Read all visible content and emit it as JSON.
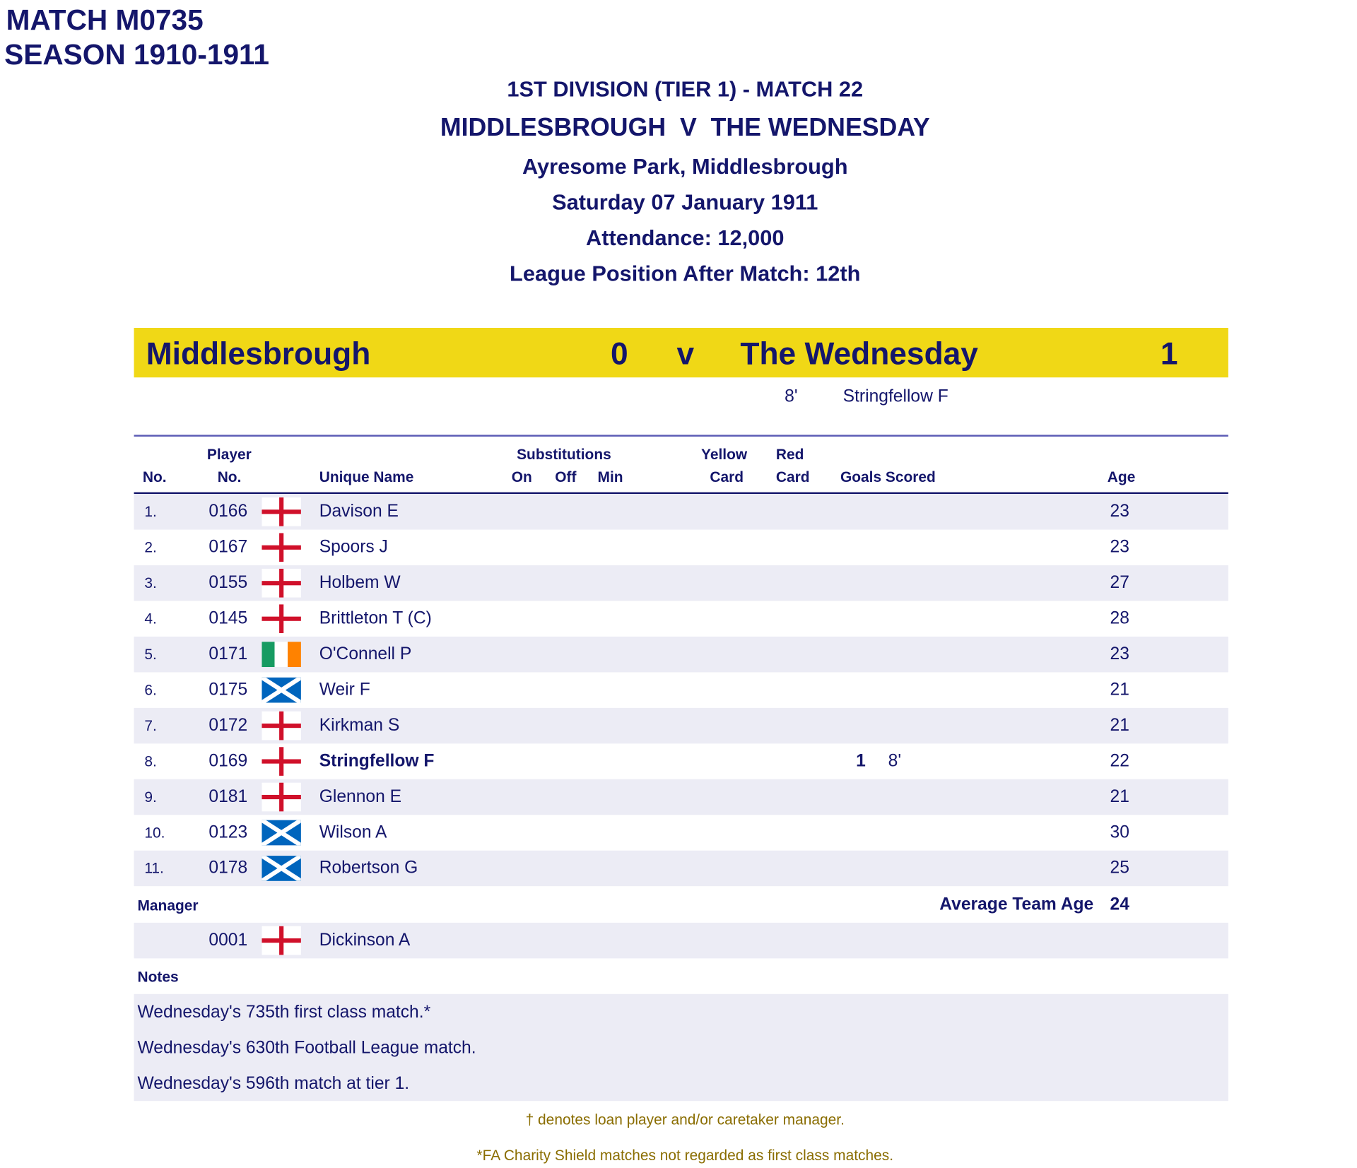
{
  "header": {
    "match_id": "MATCH M0735",
    "season": "SEASON 1910-1911"
  },
  "info": {
    "competition": "1ST DIVISION (TIER 1) - MATCH 22",
    "fixture": "MIDDLESBROUGH  V  THE WEDNESDAY",
    "venue": "Ayresome Park, Middlesbrough",
    "date": "Saturday 07 January 1911",
    "attendance": "Attendance: 12,000",
    "league_position": "League Position After Match: 12th"
  },
  "score": {
    "home": "Middlesbrough",
    "home_goals": "0",
    "vs": "v",
    "away": "The Wednesday",
    "away_goals": "1",
    "band_color": "#f0d816",
    "scorers": [
      {
        "minute": "8'",
        "name": "Stringfellow F"
      }
    ]
  },
  "columns": {
    "no": "No.",
    "player_top": "Player",
    "player_no": "No.",
    "name": "Unique Name",
    "subs": "Substitutions",
    "on": "On",
    "off": "Off",
    "min": "Min",
    "yellow_top": "Yellow",
    "yellow": "Card",
    "red_top": "Red",
    "red": "Card",
    "goals": "Goals Scored",
    "age": "Age"
  },
  "players": [
    {
      "no": "1.",
      "pno": "0166",
      "flag": "england",
      "name": "Davison E",
      "goals": "",
      "goal_min": "",
      "age": "23"
    },
    {
      "no": "2.",
      "pno": "0167",
      "flag": "england",
      "name": "Spoors J",
      "goals": "",
      "goal_min": "",
      "age": "23"
    },
    {
      "no": "3.",
      "pno": "0155",
      "flag": "england",
      "name": "Holbem W",
      "goals": "",
      "goal_min": "",
      "age": "27"
    },
    {
      "no": "4.",
      "pno": "0145",
      "flag": "england",
      "name": "Brittleton T (C)",
      "goals": "",
      "goal_min": "",
      "age": "28"
    },
    {
      "no": "5.",
      "pno": "0171",
      "flag": "ireland",
      "name": "O'Connell P",
      "goals": "",
      "goal_min": "",
      "age": "23"
    },
    {
      "no": "6.",
      "pno": "0175",
      "flag": "scotland",
      "name": "Weir F",
      "goals": "",
      "goal_min": "",
      "age": "21"
    },
    {
      "no": "7.",
      "pno": "0172",
      "flag": "england",
      "name": "Kirkman S",
      "goals": "",
      "goal_min": "",
      "age": "21"
    },
    {
      "no": "8.",
      "pno": "0169",
      "flag": "england",
      "name": "Stringfellow F",
      "goals": "1",
      "goal_min": "8'",
      "age": "22",
      "bold": true
    },
    {
      "no": "9.",
      "pno": "0181",
      "flag": "england",
      "name": "Glennon E",
      "goals": "",
      "goal_min": "",
      "age": "21"
    },
    {
      "no": "10.",
      "pno": "0123",
      "flag": "scotland",
      "name": "Wilson A",
      "goals": "",
      "goal_min": "",
      "age": "30"
    },
    {
      "no": "11.",
      "pno": "0178",
      "flag": "scotland",
      "name": "Robertson G",
      "goals": "",
      "goal_min": "",
      "age": "25"
    }
  ],
  "manager": {
    "label": "Manager",
    "pno": "0001",
    "flag": "england",
    "name": "Dickinson A",
    "avg_label": "Average Team Age",
    "avg_age": "24"
  },
  "notes": {
    "label": "Notes",
    "items": [
      "Wednesday's 735th first class match.*",
      "Wednesday's 630th Football League match.",
      "Wednesday's 596th match at tier 1."
    ]
  },
  "footnotes": [
    "† denotes loan player and/or caretaker manager.",
    "*FA Charity Shield matches not regarded as first class matches."
  ]
}
